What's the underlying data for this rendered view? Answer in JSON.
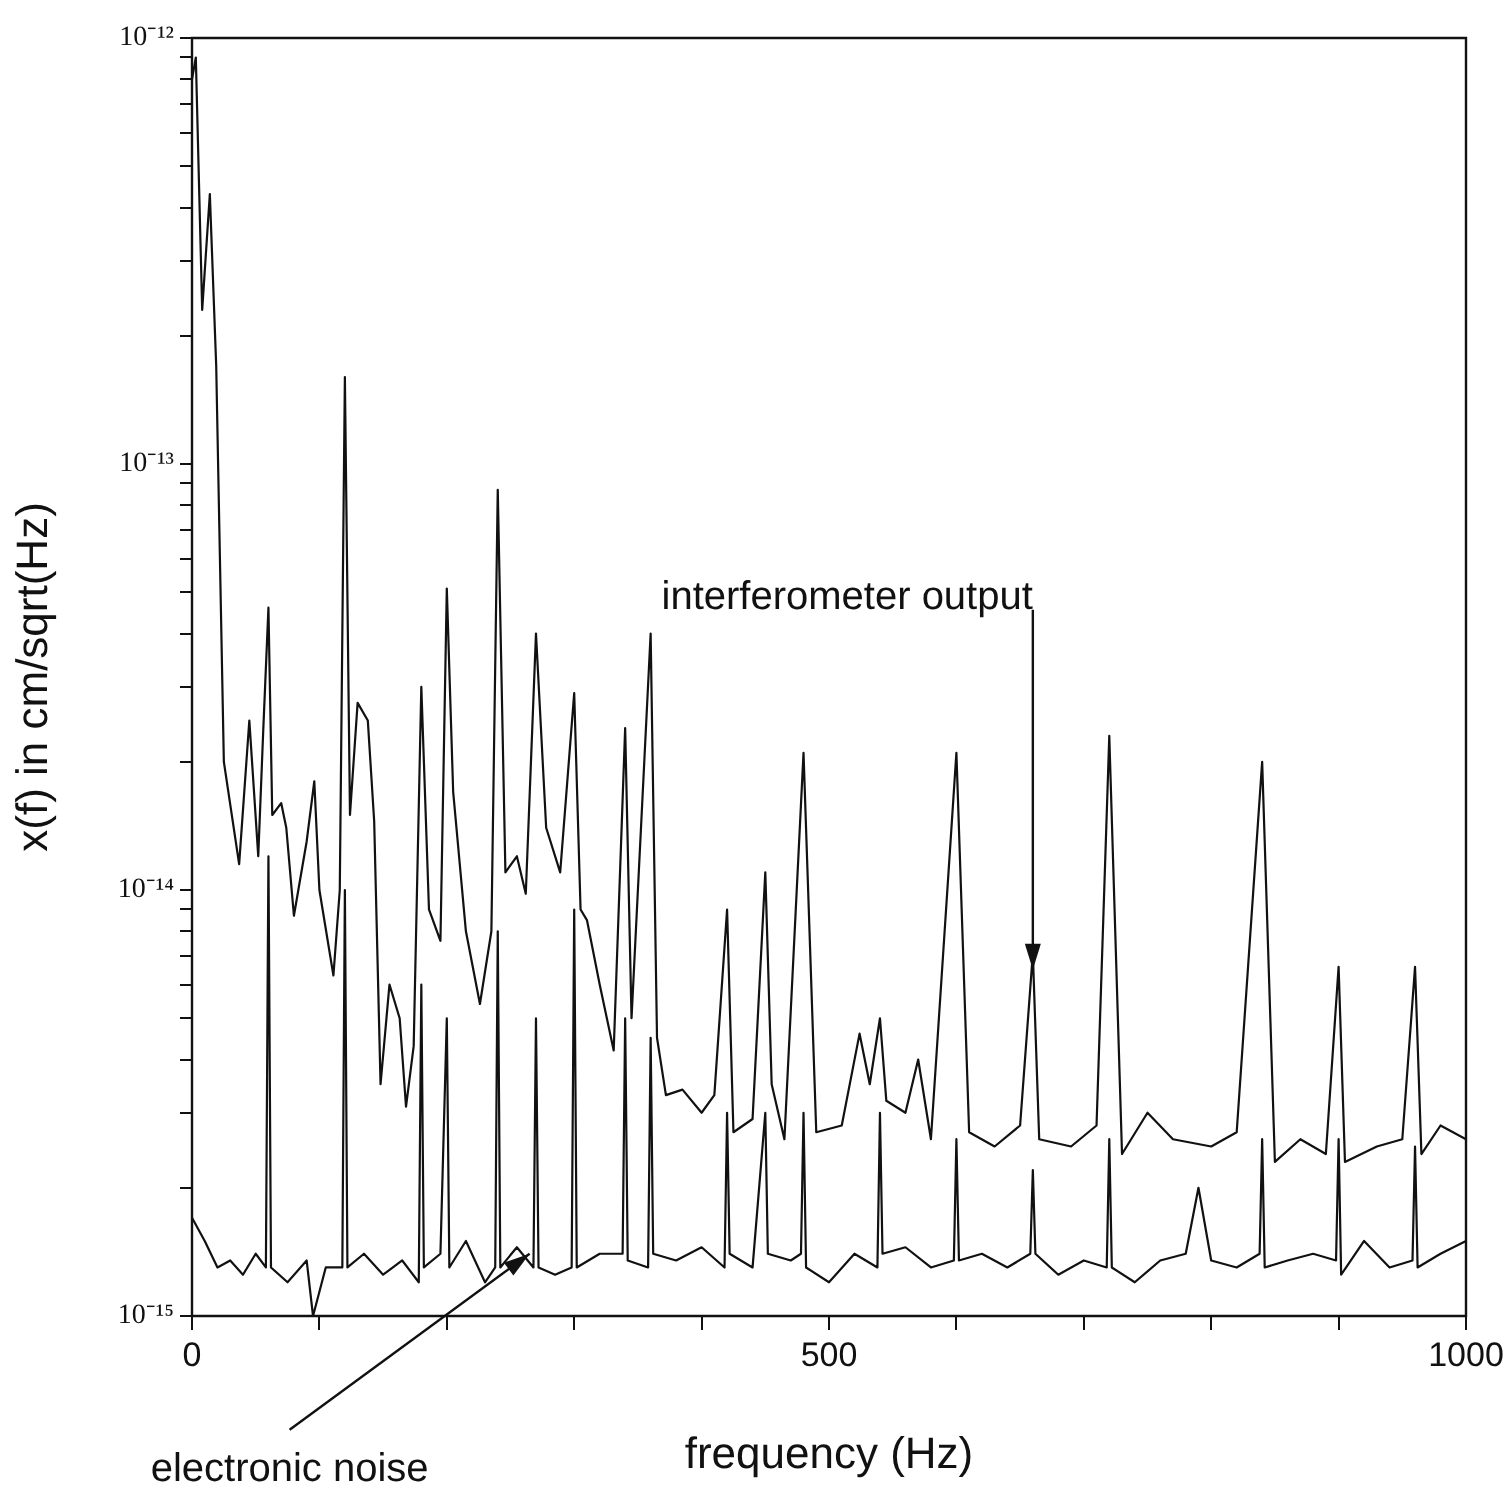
{
  "chart_data": {
    "type": "line",
    "xlabel": "frequency (Hz)",
    "ylabel": "x(f) in cm/sqrt(Hz)",
    "log": "y",
    "grid": false,
    "legend": false,
    "marker": "none",
    "line_style": "solid",
    "xlim": [
      0,
      1000
    ],
    "xticks": [
      0,
      {
        "value": 100,
        "label": null
      },
      {
        "value": 200,
        "label": null
      },
      {
        "value": 300,
        "label": null
      },
      {
        "value": 400,
        "label": null
      },
      500,
      {
        "value": 600,
        "label": null
      },
      {
        "value": 700,
        "label": null
      },
      {
        "value": 800,
        "label": null
      },
      {
        "value": 900,
        "label": null
      },
      1000
    ],
    "ylim": [
      1e-15,
      1e-12
    ],
    "yticks": [
      {
        "value": 1e-15,
        "label": "10⁻¹⁵"
      },
      {
        "value": 2e-15,
        "label": null
      },
      {
        "value": 3e-15,
        "label": null
      },
      {
        "value": 4e-15,
        "label": null
      },
      {
        "value": 5e-15,
        "label": null
      },
      {
        "value": 6e-15,
        "label": null
      },
      {
        "value": 7e-15,
        "label": null
      },
      {
        "value": 8e-15,
        "label": null
      },
      {
        "value": 9e-15,
        "label": null
      },
      {
        "value": 1e-14,
        "label": "10⁻¹⁴"
      },
      {
        "value": 2e-14,
        "label": null
      },
      {
        "value": 3e-14,
        "label": null
      },
      {
        "value": 4e-14,
        "label": null
      },
      {
        "value": 5e-14,
        "label": null
      },
      {
        "value": 6e-14,
        "label": null
      },
      {
        "value": 7e-14,
        "label": null
      },
      {
        "value": 8e-14,
        "label": null
      },
      {
        "value": 9e-14,
        "label": null
      },
      {
        "value": 1e-13,
        "label": "10⁻¹³"
      },
      {
        "value": 2e-13,
        "label": null
      },
      {
        "value": 3e-13,
        "label": null
      },
      {
        "value": 4e-13,
        "label": null
      },
      {
        "value": 5e-13,
        "label": null
      },
      {
        "value": 6e-13,
        "label": null
      },
      {
        "value": 7e-13,
        "label": null
      },
      {
        "value": 8e-13,
        "label": null
      },
      {
        "value": 9e-13,
        "label": null
      },
      {
        "value": 1e-12,
        "label": "10⁻¹²"
      }
    ],
    "annotations": [
      {
        "text": "interferometer output",
        "x": 660,
        "y": 6.5e-15
      },
      {
        "text": "electronic noise",
        "x": 265,
        "y": 1.4e-15
      }
    ],
    "series": [
      {
        "color": "#111111",
        "x": [
          0,
          3,
          8,
          14,
          19,
          25,
          37,
          45,
          52,
          56,
          60,
          63,
          70,
          74,
          80,
          90,
          96,
          100,
          111,
          116,
          120,
          124,
          130,
          138,
          143,
          148,
          155,
          163,
          168,
          174,
          180,
          186,
          195,
          200,
          205,
          215,
          226,
          235,
          240,
          246,
          255,
          262,
          270,
          278,
          289,
          300,
          305,
          310,
          320,
          331,
          340,
          345,
          360,
          365,
          372,
          385,
          400,
          410,
          420,
          425,
          440,
          450,
          455,
          465,
          480,
          490,
          510,
          524,
          532,
          540,
          545,
          560,
          570,
          580,
          600,
          610,
          630,
          650,
          660,
          665,
          690,
          710,
          720,
          730,
          750,
          770,
          800,
          820,
          840,
          850,
          870,
          890,
          900,
          905,
          930,
          950,
          960,
          965,
          980,
          1000
        ],
        "values": [
          8e-13,
          9e-13,
          2.3e-13,
          4.3e-13,
          1.7e-13,
          2e-14,
          1.15e-14,
          2.5e-14,
          1.2e-14,
          2.4e-14,
          4.6e-14,
          1.5e-14,
          1.6e-14,
          1.4e-14,
          8.7e-15,
          1.3e-14,
          1.8e-14,
          1e-14,
          6.3e-15,
          1e-14,
          1.6e-13,
          1.5e-14,
          2.75e-14,
          2.5e-14,
          1.45e-14,
          3.5e-15,
          6e-15,
          5e-15,
          3.1e-15,
          4.3e-15,
          3e-14,
          9e-15,
          7.6e-15,
          5.1e-14,
          1.7e-14,
          8e-15,
          5.4e-15,
          8e-15,
          8.7e-14,
          1.1e-14,
          1.2e-14,
          9.8e-15,
          4e-14,
          1.4e-14,
          1.1e-14,
          2.9e-14,
          9e-15,
          8.5e-15,
          6e-15,
          4.2e-15,
          2.4e-14,
          5e-15,
          4e-14,
          4.5e-15,
          3.3e-15,
          3.4e-15,
          3e-15,
          3.3e-15,
          9e-15,
          2.7e-15,
          2.9e-15,
          1.1e-14,
          3.5e-15,
          2.6e-15,
          2.1e-14,
          2.7e-15,
          2.8e-15,
          4.6e-15,
          3.5e-15,
          5e-15,
          3.2e-15,
          3e-15,
          4e-15,
          2.6e-15,
          2.1e-14,
          2.7e-15,
          2.5e-15,
          2.8e-15,
          7.1e-15,
          2.6e-15,
          2.5e-15,
          2.8e-15,
          2.3e-14,
          2.4e-15,
          3e-15,
          2.6e-15,
          2.5e-15,
          2.7e-15,
          2e-14,
          2.3e-15,
          2.6e-15,
          2.4e-15,
          6.6e-15,
          2.3e-15,
          2.5e-15,
          2.6e-15,
          6.6e-15,
          2.4e-15,
          2.8e-15,
          2.6e-15
        ]
      },
      {
        "color": "#111111",
        "x": [
          0,
          10,
          20,
          30,
          40,
          50,
          58,
          60,
          62,
          75,
          90,
          95,
          105,
          118,
          120,
          122,
          135,
          150,
          165,
          178,
          180,
          182,
          195,
          200,
          202,
          215,
          230,
          238,
          240,
          242,
          255,
          268,
          270,
          272,
          285,
          298,
          300,
          302,
          320,
          338,
          340,
          342,
          358,
          360,
          362,
          380,
          400,
          418,
          420,
          422,
          440,
          450,
          452,
          470,
          478,
          480,
          482,
          500,
          520,
          538,
          540,
          542,
          560,
          580,
          598,
          600,
          602,
          620,
          640,
          658,
          660,
          662,
          680,
          700,
          718,
          720,
          722,
          740,
          760,
          780,
          790,
          800,
          820,
          838,
          840,
          842,
          860,
          880,
          898,
          900,
          902,
          920,
          940,
          958,
          960,
          962,
          980,
          1000
        ],
        "values": [
          1.7e-15,
          1.5e-15,
          1.3e-15,
          1.35e-15,
          1.25e-15,
          1.4e-15,
          1.3e-15,
          1.2e-14,
          1.3e-15,
          1.2e-15,
          1.35e-15,
          1e-15,
          1.3e-15,
          1.3e-15,
          1e-14,
          1.3e-15,
          1.4e-15,
          1.25e-15,
          1.35e-15,
          1.2e-15,
          6e-15,
          1.3e-15,
          1.4e-15,
          5e-15,
          1.3e-15,
          1.5e-15,
          1.2e-15,
          1.3e-15,
          8e-15,
          1.3e-15,
          1.45e-15,
          1.3e-15,
          5e-15,
          1.3e-15,
          1.25e-15,
          1.3e-15,
          9e-15,
          1.3e-15,
          1.4e-15,
          1.4e-15,
          5e-15,
          1.35e-15,
          1.3e-15,
          4.5e-15,
          1.4e-15,
          1.35e-15,
          1.45e-15,
          1.3e-15,
          3e-15,
          1.4e-15,
          1.3e-15,
          3e-15,
          1.4e-15,
          1.35e-15,
          1.4e-15,
          3e-15,
          1.3e-15,
          1.2e-15,
          1.4e-15,
          1.3e-15,
          3e-15,
          1.4e-15,
          1.45e-15,
          1.3e-15,
          1.35e-15,
          2.6e-15,
          1.35e-15,
          1.4e-15,
          1.3e-15,
          1.4e-15,
          2.2e-15,
          1.4e-15,
          1.25e-15,
          1.35e-15,
          1.3e-15,
          2.6e-15,
          1.3e-15,
          1.2e-15,
          1.35e-15,
          1.4e-15,
          2e-15,
          1.35e-15,
          1.3e-15,
          1.4e-15,
          2.6e-15,
          1.3e-15,
          1.35e-15,
          1.4e-15,
          1.35e-15,
          2.6e-15,
          1.25e-15,
          1.5e-15,
          1.3e-15,
          1.35e-15,
          2.5e-15,
          1.3e-15,
          1.4e-15,
          1.5e-15
        ]
      }
    ]
  }
}
